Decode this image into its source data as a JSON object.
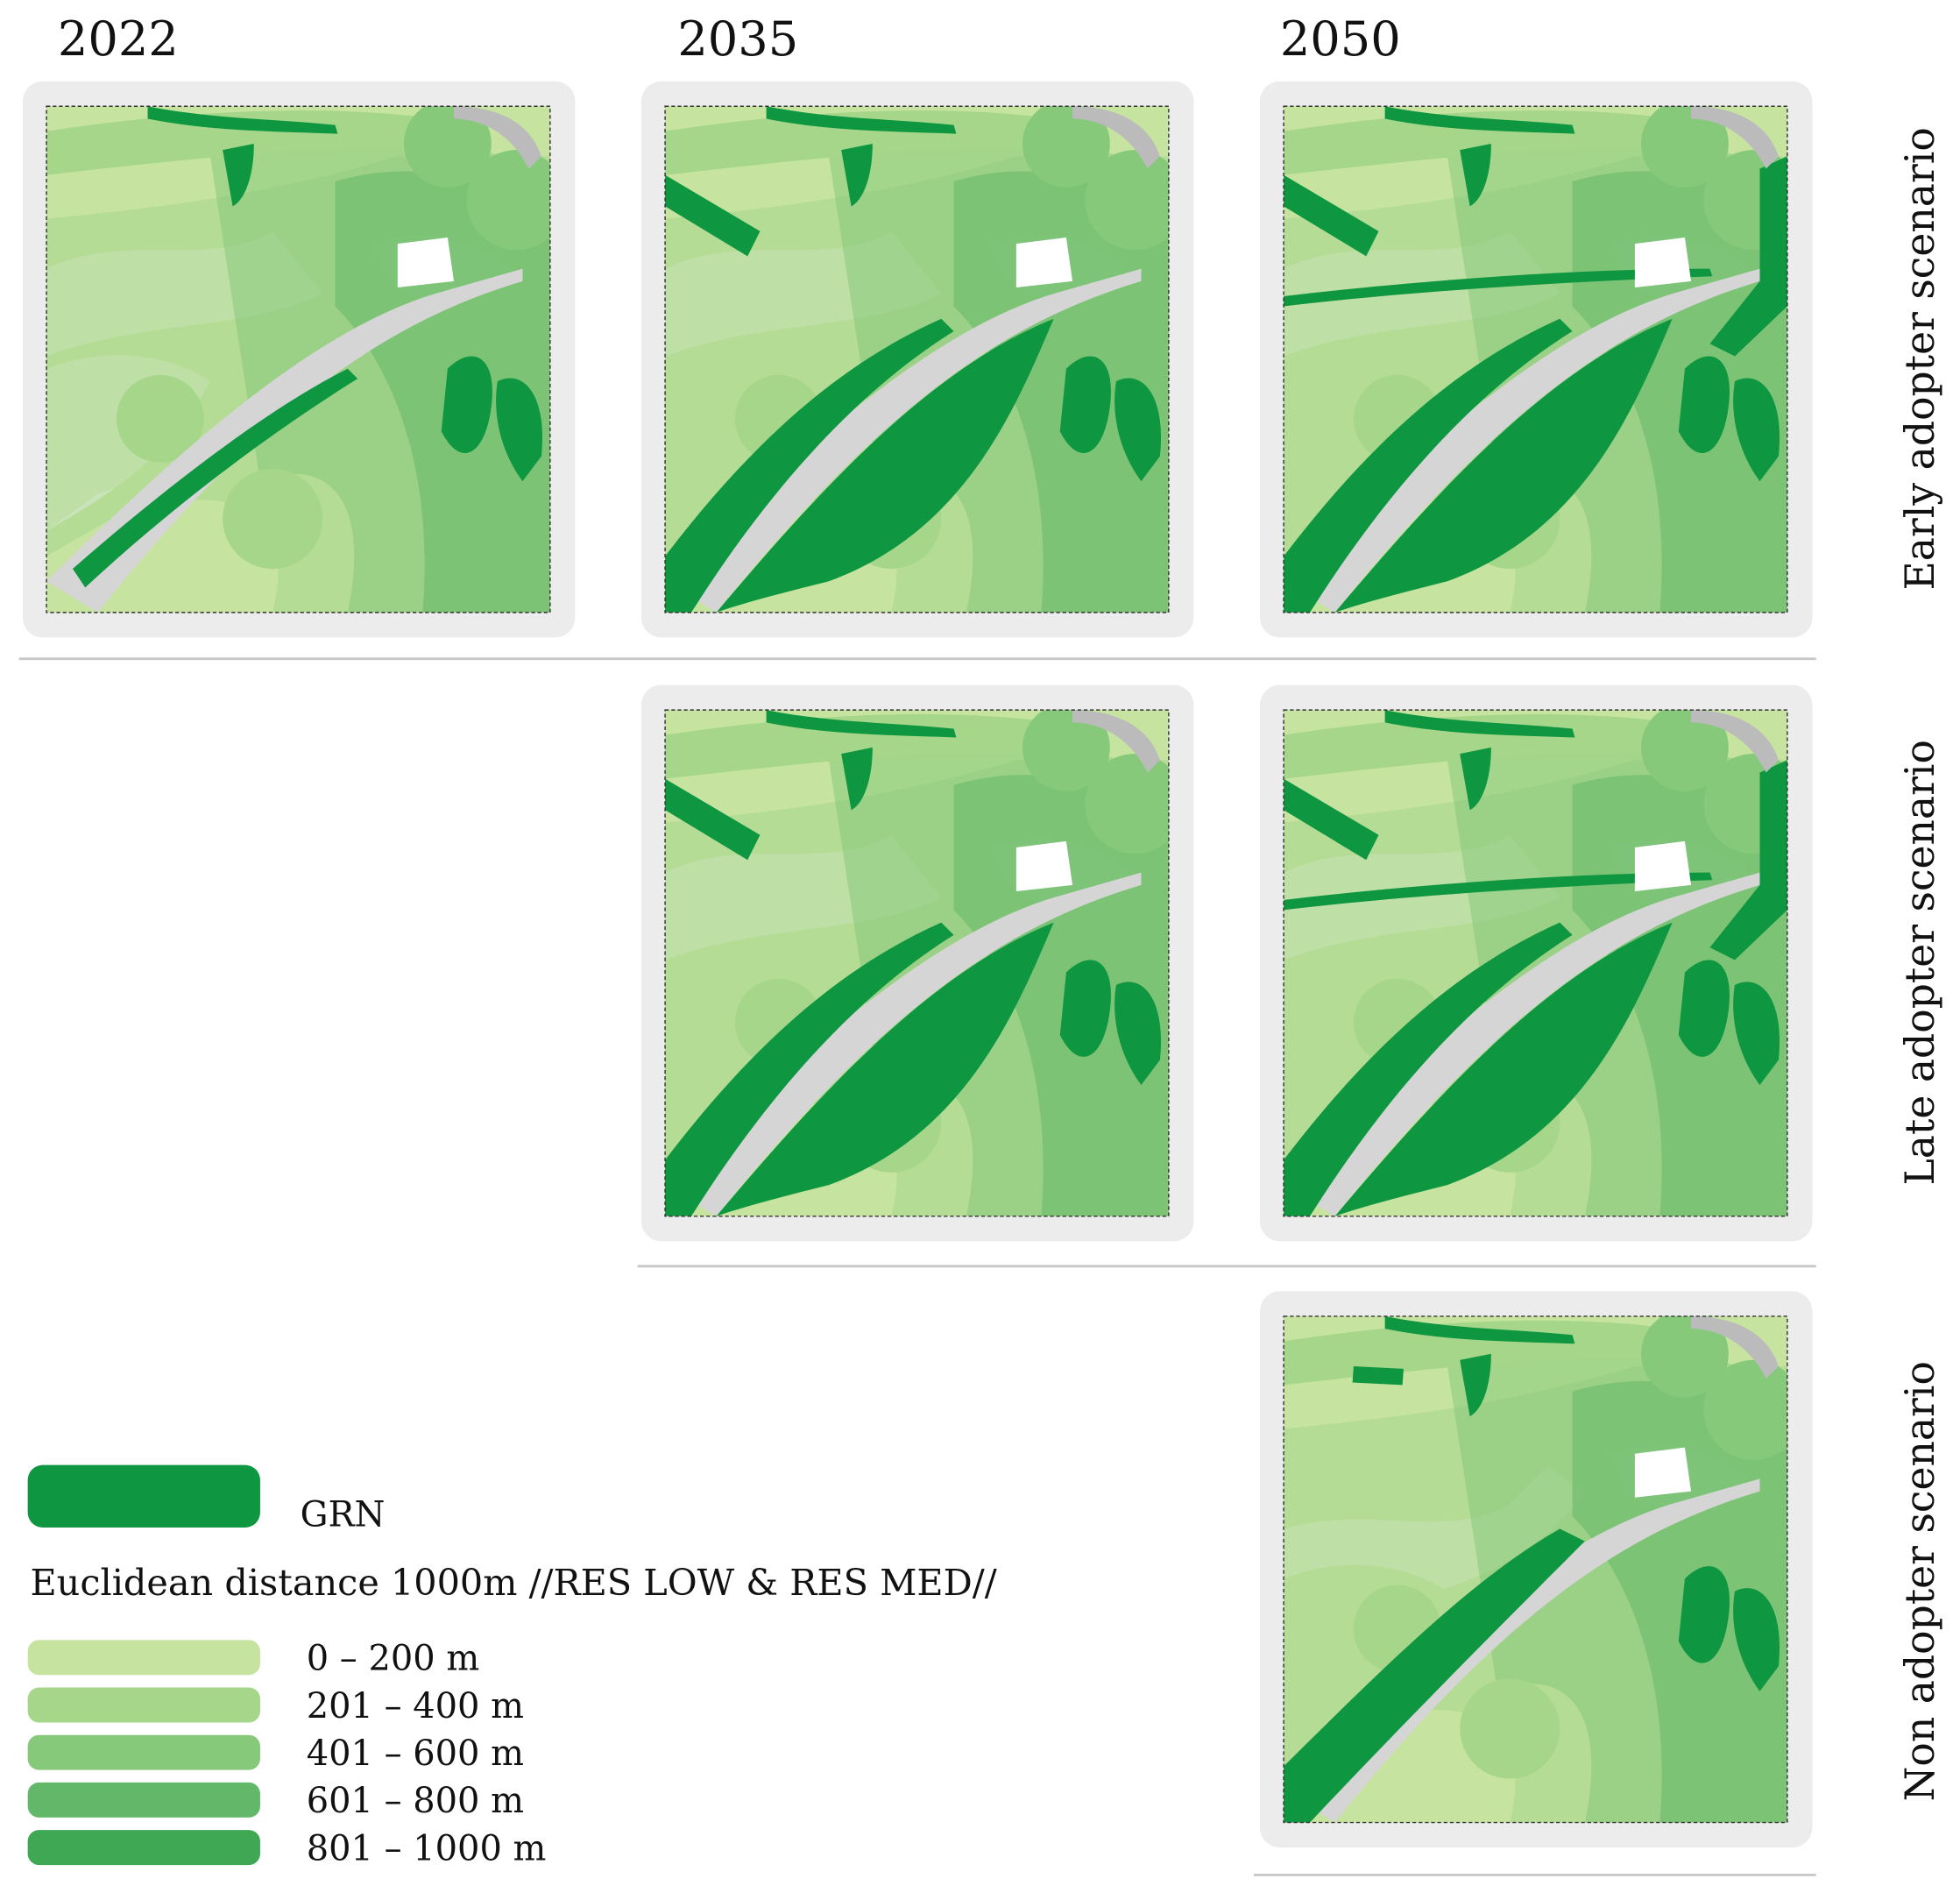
{
  "columns": [
    "2022",
    "2035",
    "2050"
  ],
  "rows": [
    "Early adopter scenario",
    "Late adopter scenario",
    "Non adopter scenario"
  ],
  "legend": {
    "grn": {
      "label": "GRN",
      "color": "#0e9640"
    },
    "title": "Euclidean distance 1000m //RES LOW & RES MED//",
    "classes": [
      {
        "label": "0 – 200 m",
        "color": "#c6e4a0"
      },
      {
        "label": "201 – 400 m",
        "color": "#a5d68a"
      },
      {
        "label": "401 – 600 m",
        "color": "#86c97a"
      },
      {
        "label": "601 – 800 m",
        "color": "#62b868"
      },
      {
        "label": "801 – 1000 m",
        "color": "#3ea855"
      }
    ]
  }
}
